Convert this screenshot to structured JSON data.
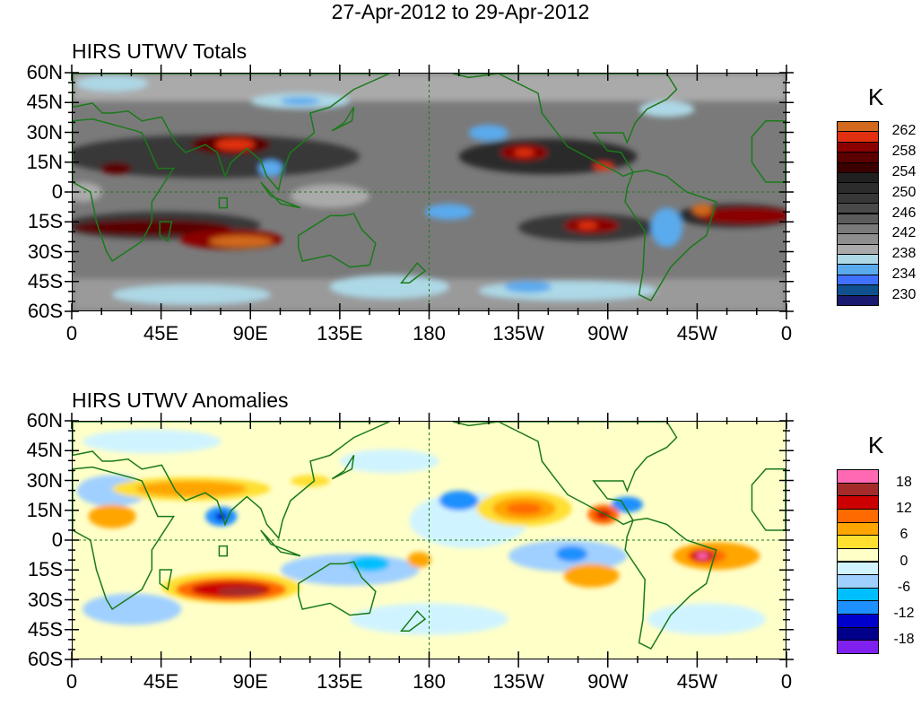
{
  "title": "27-Apr-2012 to 29-Apr-2012",
  "lat_labels": [
    "60N",
    "45N",
    "30N",
    "15N",
    "0",
    "15S",
    "30S",
    "45S",
    "60S"
  ],
  "lon_labels": [
    "0",
    "45E",
    "90E",
    "135E",
    "180",
    "135W",
    "90W",
    "45W",
    "0"
  ],
  "panels": [
    {
      "title": "HIRS UTWV Totals",
      "colorbar": {
        "unit": "K",
        "labels": [
          "262",
          "258",
          "254",
          "250",
          "246",
          "242",
          "238",
          "234",
          "230"
        ],
        "colors": [
          "#d2691e",
          "#e0300f",
          "#8b0000",
          "#5a0000",
          "#3a0000",
          "#202020",
          "#2c2c2c",
          "#383838",
          "#4a4a4a",
          "#5c5c5c",
          "#7a7a7a",
          "#8e8e8e",
          "#aaaaaa",
          "#add8e6",
          "#5aaaee",
          "#4070ff",
          "#10508f",
          "#1a1a70"
        ]
      }
    },
    {
      "title": "HIRS UTWV Anomalies",
      "colorbar": {
        "unit": "K",
        "labels": [
          "18",
          "12",
          "6",
          "0",
          "-6",
          "-12",
          "-18"
        ],
        "colors": [
          "#ff69b4",
          "#a52a2a",
          "#cc0000",
          "#ff6a00",
          "#ffa500",
          "#ffdf30",
          "#ffffc8",
          "#d0f4ff",
          "#a0d0ff",
          "#00bfff",
          "#1e90ff",
          "#0000cd",
          "#00008b",
          "#7f20ef"
        ]
      }
    }
  ]
}
